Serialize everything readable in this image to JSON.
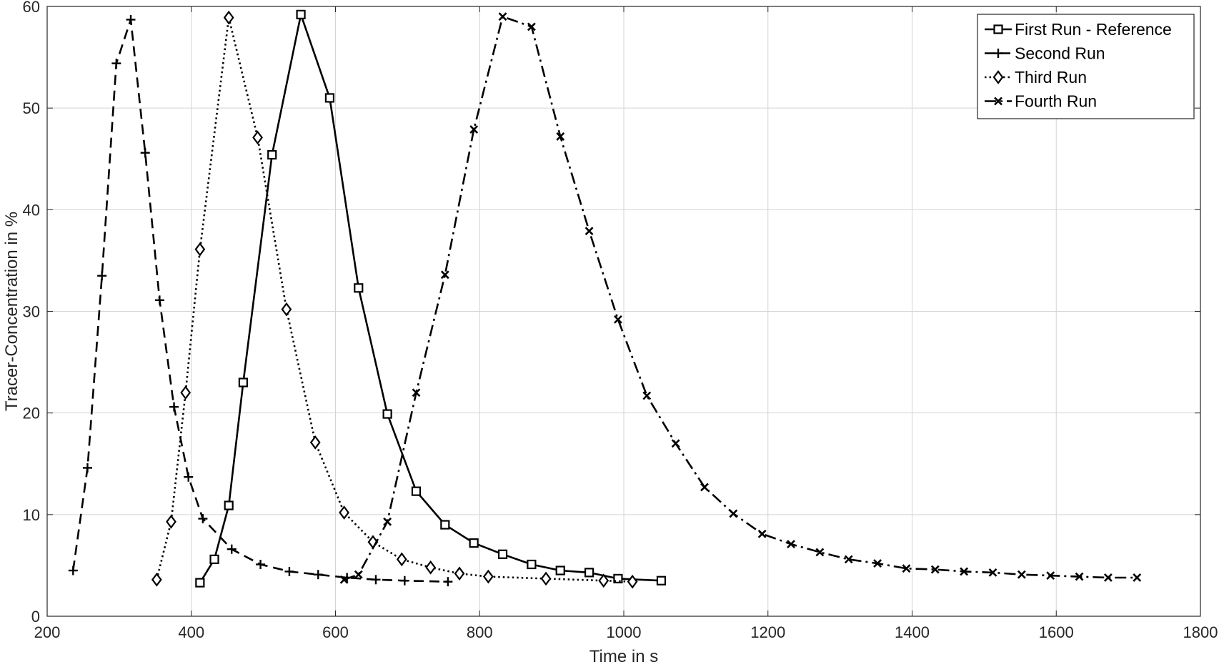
{
  "chart_data": {
    "type": "line",
    "title": "",
    "xlabel": "Time in s",
    "ylabel": "Tracer-Concentration in %",
    "xlim": [
      200,
      1800
    ],
    "ylim": [
      0,
      60
    ],
    "xticks": [
      200,
      400,
      600,
      800,
      1000,
      1200,
      1400,
      1600,
      1800
    ],
    "yticks": [
      0,
      10,
      20,
      30,
      40,
      50,
      60
    ],
    "grid": true,
    "legend_position": "top-right",
    "series": [
      {
        "name": "First Run - Reference",
        "line_style": "solid",
        "marker": "square",
        "x": [
          412,
          432,
          452,
          472,
          512,
          552,
          592,
          632,
          672,
          712,
          752,
          792,
          832,
          872,
          912,
          952,
          992,
          1052
        ],
        "y": [
          3.3,
          5.6,
          10.9,
          23.0,
          45.4,
          59.2,
          51.0,
          32.3,
          19.9,
          12.3,
          9.0,
          7.2,
          6.1,
          5.1,
          4.5,
          4.3,
          3.7,
          3.5
        ]
      },
      {
        "name": "Second Run",
        "line_style": "dashed",
        "marker": "plus",
        "x": [
          236,
          256,
          276,
          296,
          316,
          336,
          356,
          376,
          396,
          416,
          456,
          496,
          536,
          576,
          616,
          656,
          696,
          756
        ],
        "y": [
          4.5,
          14.6,
          33.5,
          54.4,
          58.7,
          45.6,
          31.1,
          20.6,
          13.7,
          9.6,
          6.6,
          5.1,
          4.4,
          4.1,
          3.8,
          3.6,
          3.5,
          3.4
        ]
      },
      {
        "name": "Third Run",
        "line_style": "dotted",
        "marker": "diamond",
        "x": [
          352,
          372,
          392,
          412,
          452,
          492,
          532,
          572,
          612,
          652,
          692,
          732,
          772,
          812,
          892,
          972,
          1012
        ],
        "y": [
          3.6,
          9.3,
          22.0,
          36.1,
          58.9,
          47.1,
          30.2,
          17.1,
          10.2,
          7.3,
          5.6,
          4.8,
          4.2,
          3.9,
          3.7,
          3.5,
          3.4
        ]
      },
      {
        "name": "Fourth Run",
        "line_style": "dash-dot",
        "marker": "x",
        "x": [
          612,
          632,
          672,
          712,
          752,
          792,
          832,
          872,
          912,
          952,
          992,
          1032,
          1072,
          1112,
          1152,
          1192,
          1232,
          1272,
          1312,
          1352,
          1392,
          1432,
          1472,
          1512,
          1552,
          1592,
          1632,
          1672,
          1712
        ],
        "y": [
          3.6,
          4.1,
          9.3,
          22.0,
          33.6,
          47.9,
          59.0,
          58.0,
          47.2,
          37.9,
          29.2,
          21.7,
          17.0,
          12.7,
          10.1,
          8.1,
          7.1,
          6.3,
          5.6,
          5.2,
          4.7,
          4.6,
          4.4,
          4.3,
          4.1,
          4.0,
          3.9,
          3.8,
          3.8
        ]
      }
    ]
  }
}
